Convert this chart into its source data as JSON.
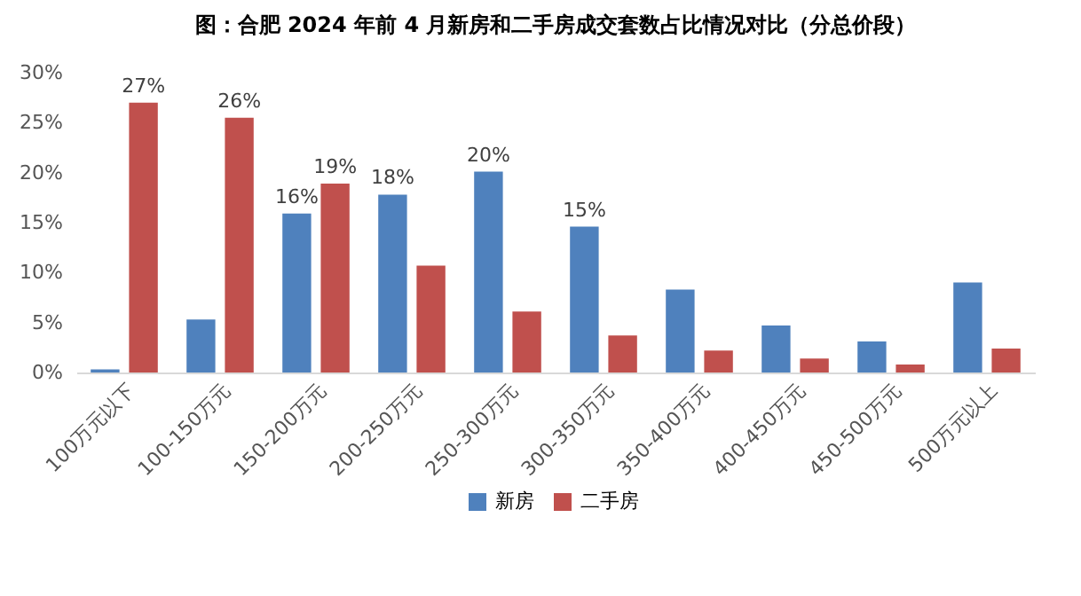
{
  "chart_data": {
    "type": "bar",
    "title": "图：合肥 2024 年前 4 月新房和二手房成交套数占比情况对比（分总价段）",
    "categories": [
      "100万元以下",
      "100-150万元",
      "150-200万元",
      "200-250万元",
      "250-300万元",
      "300-350万元",
      "350-400万元",
      "400-450万元",
      "450-500万元",
      "500万元以上"
    ],
    "series": [
      {
        "name": "新房",
        "color": "#4f81bd",
        "values": [
          0.3,
          5.3,
          15.9,
          17.8,
          20.1,
          14.6,
          8.3,
          4.7,
          3.1,
          9.0
        ],
        "value_labels": [
          null,
          null,
          "16%",
          "18%",
          "20%",
          "15%",
          null,
          null,
          null,
          null
        ]
      },
      {
        "name": "二手房",
        "color": "#c0504d",
        "values": [
          27.0,
          25.5,
          18.9,
          10.7,
          6.1,
          3.7,
          2.2,
          1.4,
          0.8,
          2.4
        ],
        "value_labels": [
          "27%",
          "26%",
          "19%",
          null,
          null,
          null,
          null,
          null,
          null,
          null
        ]
      }
    ],
    "ylim": [
      0,
      30
    ],
    "yticks": [
      {
        "value": 0,
        "label": "0%"
      },
      {
        "value": 5,
        "label": "5%"
      },
      {
        "value": 10,
        "label": "10%"
      },
      {
        "value": 15,
        "label": "15%"
      },
      {
        "value": 20,
        "label": "20%"
      },
      {
        "value": 25,
        "label": "25%"
      },
      {
        "value": 30,
        "label": "30%"
      }
    ],
    "grid": false,
    "legend": "bottom"
  }
}
